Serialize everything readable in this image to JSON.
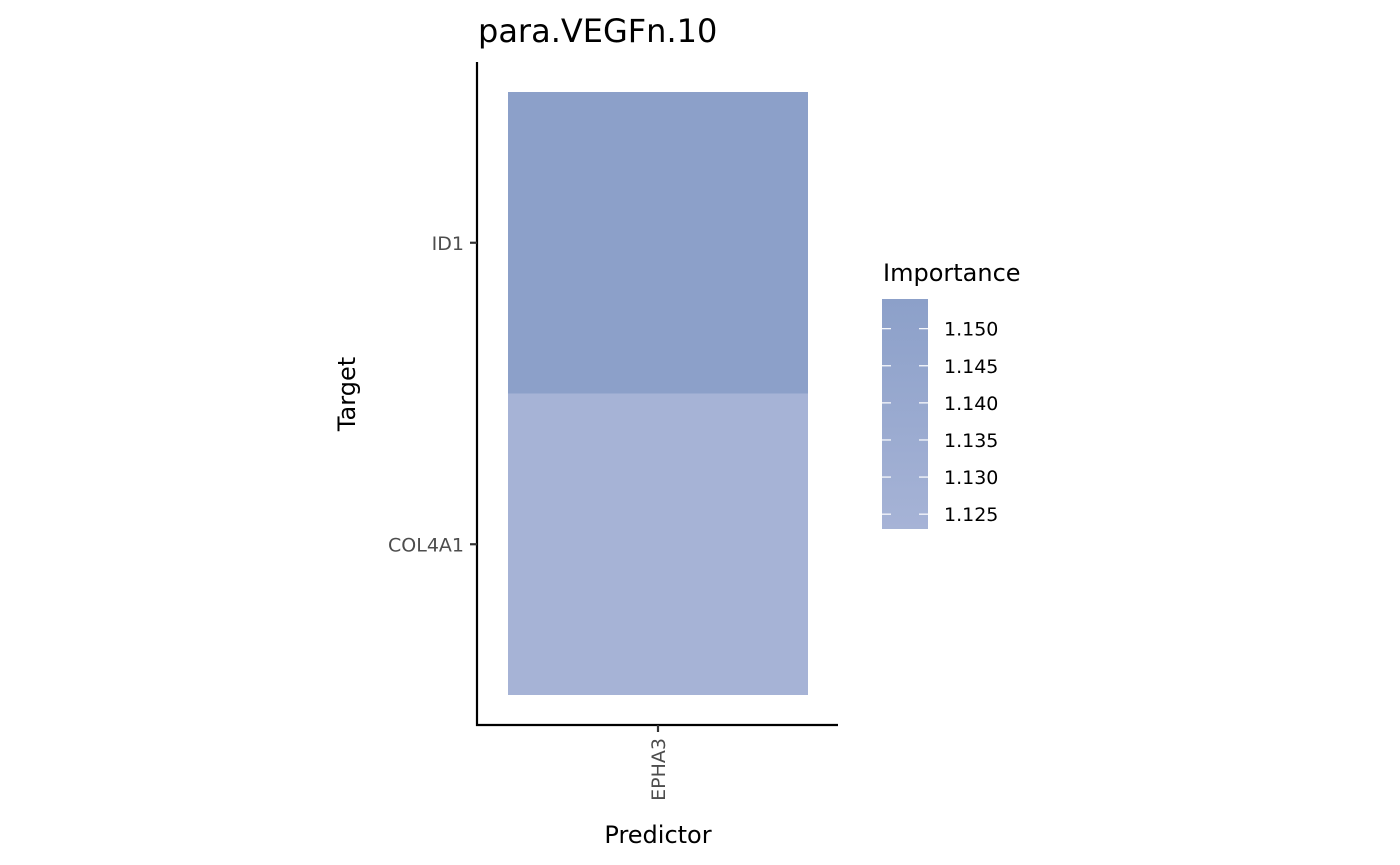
{
  "chart_data": {
    "type": "heatmap",
    "title": "para.VEGFn.10",
    "xlabel": "Predictor",
    "ylabel": "Target",
    "x_categories": [
      "EPHA3"
    ],
    "y_categories": [
      "COL4A1",
      "ID1"
    ],
    "cells": [
      {
        "x": "EPHA3",
        "y": "ID1",
        "value": 1.154
      },
      {
        "x": "EPHA3",
        "y": "COL4A1",
        "value": 1.123
      }
    ],
    "legend": {
      "title": "Importance",
      "position": "right",
      "breaks": [
        1.125,
        1.13,
        1.135,
        1.14,
        1.145,
        1.15
      ],
      "range": [
        1.123,
        1.154
      ],
      "color_low": "#a6b3d6",
      "color_high": "#8ca0c9"
    },
    "grid": false
  }
}
